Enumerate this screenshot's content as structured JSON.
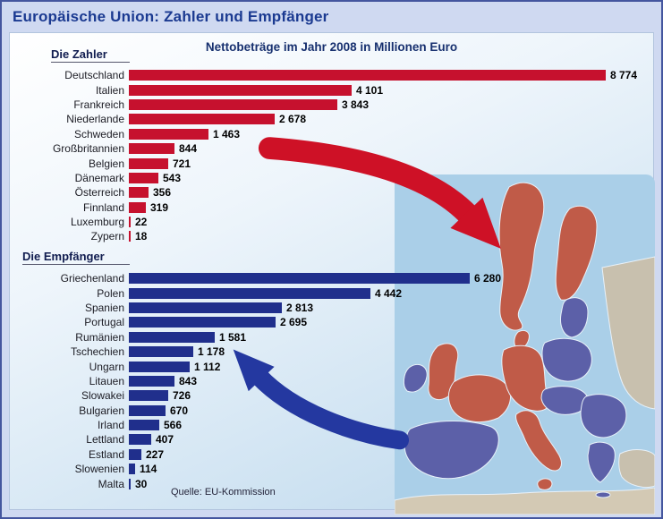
{
  "page": {
    "title": "Europäische Union: Zahler und Empfänger",
    "subtitle": "Nettobeträge im Jahr 2008 in Millionen Euro",
    "source": "Quelle: EU-Kommission"
  },
  "colors": {
    "payer_bar": "#c6112e",
    "recipient_bar": "#202f8c",
    "payer_arrow": "#ce1126",
    "recipient_arrow": "#2438a0",
    "map_payer": "#c05b48",
    "map_recipient": "#5c60a8",
    "sea": "#aacfe8",
    "noneu_land": "#c8c0ae",
    "africa_land": "#d3c9b4",
    "title_text": "#1b3a91"
  },
  "chart_data": [
    {
      "type": "bar",
      "title": "Die Zahler",
      "unit": "Millionen Euro",
      "year": 2008,
      "orientation": "horizontal",
      "categories": [
        "Deutschland",
        "Italien",
        "Frankreich",
        "Niederlande",
        "Schweden",
        "Großbritannien",
        "Belgien",
        "Dänemark",
        "Österreich",
        "Finnland",
        "Luxemburg",
        "Zypern"
      ],
      "values": [
        8774,
        4101,
        3843,
        2678,
        1463,
        844,
        721,
        543,
        356,
        319,
        22,
        18
      ],
      "value_labels": [
        "8 774",
        "4 101",
        "3 843",
        "2 678",
        "1 463",
        "844",
        "721",
        "543",
        "356",
        "319",
        "22",
        "18"
      ],
      "xlim": [
        0,
        8774
      ],
      "bar_name": "payer-bar"
    },
    {
      "type": "bar",
      "title": "Die Empfänger",
      "unit": "Millionen Euro",
      "year": 2008,
      "orientation": "horizontal",
      "categories": [
        "Griechenland",
        "Polen",
        "Spanien",
        "Portugal",
        "Rumänien",
        "Tschechien",
        "Ungarn",
        "Litauen",
        "Slowakei",
        "Bulgarien",
        "Irland",
        "Lettland",
        "Estland",
        "Slowenien",
        "Malta"
      ],
      "values": [
        6280,
        4442,
        2813,
        2695,
        1581,
        1178,
        1112,
        843,
        726,
        670,
        566,
        407,
        227,
        114,
        30
      ],
      "value_labels": [
        "6 280",
        "4 442",
        "2 813",
        "2 695",
        "1 581",
        "1 178",
        "1 112",
        "843",
        "726",
        "670",
        "566",
        "407",
        "227",
        "114",
        "30"
      ],
      "xlim": [
        0,
        8774
      ],
      "bar_name": "recipient-bar"
    }
  ]
}
